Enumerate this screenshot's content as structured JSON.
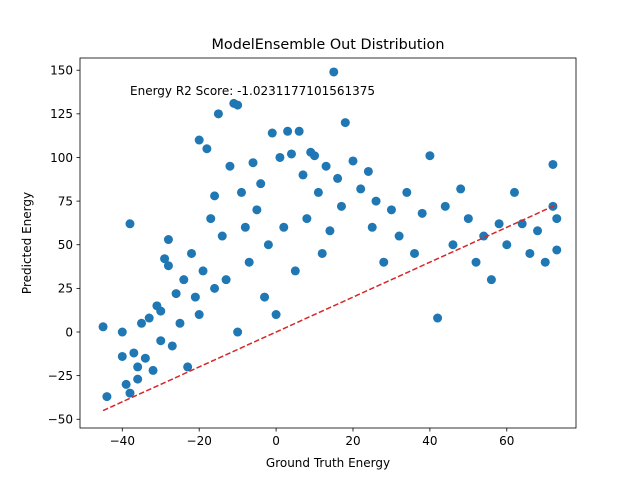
{
  "chart_data": {
    "type": "scatter",
    "title": "ModelEnsemble Out Distribution",
    "xlabel": "Ground Truth Energy",
    "ylabel": "Predicted Energy",
    "annotation": "Energy R2 Score: -1.0231177101561375",
    "xlim": [
      -51,
      78
    ],
    "ylim": [
      -55,
      157
    ],
    "xticks": [
      -40,
      -20,
      0,
      20,
      40,
      60
    ],
    "xtick_labels": [
      "−40",
      "−20",
      "0",
      "20",
      "40",
      "60"
    ],
    "yticks": [
      -50,
      -25,
      0,
      25,
      50,
      75,
      100,
      125,
      150
    ],
    "ytick_labels": [
      "−50",
      "−25",
      "0",
      "25",
      "50",
      "75",
      "100",
      "125",
      "150"
    ],
    "grid": false,
    "legend": "none",
    "reference_line": {
      "x": [
        -45,
        73
      ],
      "y": [
        -45,
        73
      ],
      "style": "dashed",
      "color": "#d62728"
    },
    "series": [
      {
        "color": "#1f77b4",
        "points": [
          [
            -45,
            3
          ],
          [
            -44,
            -37
          ],
          [
            -40,
            0
          ],
          [
            -40,
            -14
          ],
          [
            -39,
            -30
          ],
          [
            -38,
            -35
          ],
          [
            -38,
            62
          ],
          [
            -37,
            -12
          ],
          [
            -36,
            -20
          ],
          [
            -36,
            -27
          ],
          [
            -35,
            5
          ],
          [
            -34,
            -15
          ],
          [
            -33,
            8
          ],
          [
            -32,
            -22
          ],
          [
            -31,
            15
          ],
          [
            -30,
            -5
          ],
          [
            -30,
            12
          ],
          [
            -29,
            42
          ],
          [
            -28,
            53
          ],
          [
            -28,
            38
          ],
          [
            -27,
            -8
          ],
          [
            -26,
            22
          ],
          [
            -25,
            5
          ],
          [
            -24,
            30
          ],
          [
            -23,
            -20
          ],
          [
            -22,
            45
          ],
          [
            -21,
            20
          ],
          [
            -20,
            110
          ],
          [
            -20,
            10
          ],
          [
            -19,
            35
          ],
          [
            -18,
            105
          ],
          [
            -17,
            65
          ],
          [
            -16,
            78
          ],
          [
            -16,
            25
          ],
          [
            -15,
            125
          ],
          [
            -14,
            55
          ],
          [
            -13,
            30
          ],
          [
            -12,
            95
          ],
          [
            -11,
            131
          ],
          [
            -10,
            130
          ],
          [
            -10,
            0
          ],
          [
            -9,
            80
          ],
          [
            -8,
            60
          ],
          [
            -7,
            40
          ],
          [
            -6,
            97
          ],
          [
            -5,
            70
          ],
          [
            -4,
            85
          ],
          [
            -3,
            20
          ],
          [
            -2,
            50
          ],
          [
            -1,
            114
          ],
          [
            0,
            10
          ],
          [
            1,
            100
          ],
          [
            2,
            60
          ],
          [
            3,
            115
          ],
          [
            4,
            102
          ],
          [
            5,
            35
          ],
          [
            6,
            115
          ],
          [
            7,
            90
          ],
          [
            8,
            65
          ],
          [
            9,
            103
          ],
          [
            10,
            101
          ],
          [
            11,
            80
          ],
          [
            12,
            45
          ],
          [
            13,
            95
          ],
          [
            14,
            58
          ],
          [
            15,
            149
          ],
          [
            16,
            88
          ],
          [
            17,
            72
          ],
          [
            18,
            120
          ],
          [
            20,
            98
          ],
          [
            22,
            82
          ],
          [
            24,
            92
          ],
          [
            25,
            60
          ],
          [
            26,
            75
          ],
          [
            28,
            40
          ],
          [
            30,
            70
          ],
          [
            32,
            55
          ],
          [
            34,
            80
          ],
          [
            36,
            45
          ],
          [
            38,
            68
          ],
          [
            40,
            101
          ],
          [
            42,
            8
          ],
          [
            44,
            72
          ],
          [
            46,
            50
          ],
          [
            48,
            82
          ],
          [
            50,
            65
          ],
          [
            52,
            40
          ],
          [
            54,
            55
          ],
          [
            56,
            30
          ],
          [
            58,
            62
          ],
          [
            60,
            50
          ],
          [
            62,
            80
          ],
          [
            64,
            62
          ],
          [
            66,
            45
          ],
          [
            68,
            58
          ],
          [
            70,
            40
          ],
          [
            72,
            96
          ],
          [
            72,
            72
          ],
          [
            73,
            65
          ],
          [
            73,
            47
          ]
        ]
      }
    ]
  }
}
